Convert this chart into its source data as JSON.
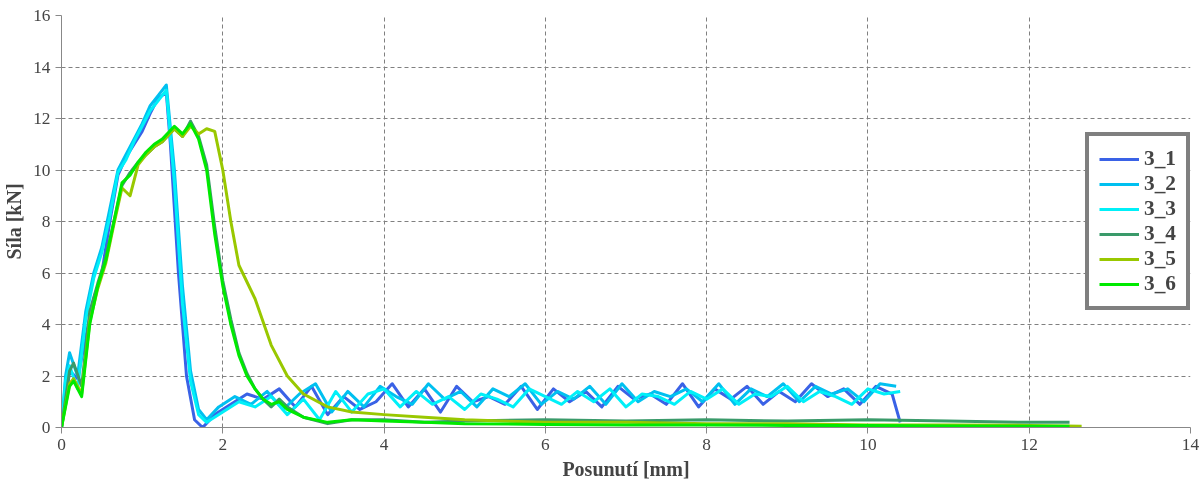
{
  "chart_data": {
    "type": "line",
    "xlabel": "Posunutí [mm]",
    "ylabel": "Síla [kN]",
    "xlim": [
      0,
      14
    ],
    "ylim": [
      0,
      16
    ],
    "xticks": [
      0,
      2,
      4,
      6,
      8,
      10,
      12,
      14
    ],
    "yticks": [
      0,
      2,
      4,
      6,
      8,
      10,
      12,
      14,
      16
    ],
    "grid": true,
    "legend": "right",
    "line_style": "solid",
    "marker": "none",
    "series": [
      {
        "name": "3_1",
        "color": "#3a62e6",
        "x": [
          0,
          0.05,
          0.1,
          0.2,
          0.3,
          0.4,
          0.5,
          0.6,
          0.7,
          0.8,
          0.9,
          1.0,
          1.1,
          1.2,
          1.3,
          1.35,
          1.45,
          1.55,
          1.65,
          1.75,
          1.9,
          2.1,
          2.3,
          2.5,
          2.7,
          2.9,
          3.1,
          3.3,
          3.5,
          3.7,
          3.9,
          4.1,
          4.3,
          4.5,
          4.7,
          4.9,
          5.1,
          5.3,
          5.5,
          5.7,
          5.9,
          6.1,
          6.3,
          6.5,
          6.7,
          6.9,
          7.1,
          7.3,
          7.5,
          7.7,
          7.9,
          8.1,
          8.3,
          8.5,
          8.7,
          8.9,
          9.1,
          9.3,
          9.5,
          9.7,
          9.9,
          10.1,
          10.3,
          10.4
        ],
        "values": [
          0,
          1.0,
          2.2,
          1.9,
          3.5,
          5.0,
          6.0,
          8,
          9.8,
          10.5,
          11,
          11.5,
          12.2,
          12.8,
          13,
          11,
          6,
          2,
          0.3,
          0,
          0.5,
          0.9,
          1.3,
          1.1,
          1.5,
          0.8,
          1.6,
          0.5,
          1.2,
          0.7,
          1.0,
          1.7,
          0.8,
          1.5,
          0.6,
          1.6,
          1.0,
          1.2,
          0.9,
          1.6,
          0.7,
          1.5,
          1.0,
          1.4,
          0.8,
          1.6,
          1.1,
          1.3,
          0.9,
          1.7,
          0.8,
          1.5,
          1.1,
          1.6,
          0.9,
          1.4,
          1.0,
          1.7,
          1.2,
          1.5,
          0.9,
          1.6,
          1.3,
          0.2
        ]
      },
      {
        "name": "3_2",
        "color": "#00c0f0",
        "x": [
          0,
          0.05,
          0.1,
          0.2,
          0.3,
          0.4,
          0.5,
          0.6,
          0.7,
          0.8,
          0.9,
          1.0,
          1.1,
          1.2,
          1.3,
          1.4,
          1.5,
          1.6,
          1.7,
          1.8,
          1.95,
          2.15,
          2.35,
          2.55,
          2.75,
          2.95,
          3.15,
          3.35,
          3.55,
          3.75,
          3.95,
          4.15,
          4.35,
          4.55,
          4.75,
          4.95,
          5.15,
          5.35,
          5.55,
          5.75,
          5.95,
          6.15,
          6.35,
          6.55,
          6.75,
          6.95,
          7.15,
          7.35,
          7.55,
          7.75,
          7.95,
          8.15,
          8.35,
          8.55,
          8.75,
          8.95,
          9.15,
          9.35,
          9.55,
          9.75,
          9.95,
          10.15,
          10.35
        ],
        "values": [
          0,
          2,
          2.9,
          2,
          4.5,
          6,
          7,
          8.5,
          10,
          10.6,
          11.2,
          11.8,
          12.5,
          12.9,
          13.3,
          10,
          5.5,
          2.2,
          0.7,
          0.3,
          0.8,
          1.2,
          0.9,
          1.4,
          0.7,
          1.3,
          1.7,
          0.6,
          1.4,
          0.8,
          1.6,
          1.2,
          0.9,
          1.7,
          1.1,
          1.4,
          0.8,
          1.5,
          1.2,
          1.7,
          0.9,
          1.4,
          1.1,
          1.6,
          0.9,
          1.7,
          1.0,
          1.4,
          1.2,
          1.5,
          1.0,
          1.7,
          0.9,
          1.5,
          1.2,
          1.7,
          1.0,
          1.6,
          1.3,
          1.5,
          1.0,
          1.7,
          1.6
        ]
      },
      {
        "name": "3_3",
        "color": "#00f0f8",
        "x": [
          0,
          0.05,
          0.1,
          0.2,
          0.3,
          0.4,
          0.5,
          0.6,
          0.7,
          0.8,
          0.9,
          1.0,
          1.1,
          1.2,
          1.3,
          1.4,
          1.5,
          1.6,
          1.7,
          1.8,
          2.0,
          2.2,
          2.4,
          2.6,
          2.8,
          3.0,
          3.2,
          3.4,
          3.6,
          3.8,
          4.0,
          4.2,
          4.4,
          4.6,
          4.8,
          5.0,
          5.2,
          5.4,
          5.6,
          5.8,
          6.0,
          6.2,
          6.4,
          6.6,
          6.8,
          7.0,
          7.2,
          7.4,
          7.6,
          7.8,
          8.0,
          8.2,
          8.4,
          8.6,
          8.8,
          9.0,
          9.2,
          9.4,
          9.6,
          9.8,
          10.0,
          10.2,
          10.4
        ],
        "values": [
          0,
          1.8,
          2.4,
          1.5,
          4.2,
          5.8,
          6.8,
          8.2,
          9.9,
          10.4,
          11.1,
          11.7,
          12.3,
          12.7,
          13.1,
          9.5,
          4.8,
          1.8,
          0.5,
          0.2,
          0.6,
          1.0,
          0.8,
          1.2,
          0.5,
          1.1,
          0.3,
          1.4,
          0.6,
          1.3,
          1.5,
          0.8,
          1.4,
          0.9,
          1.2,
          0.7,
          1.3,
          1.1,
          0.8,
          1.5,
          1.2,
          0.9,
          1.4,
          1.0,
          1.5,
          0.8,
          1.3,
          1.2,
          0.9,
          1.4,
          1.1,
          1.5,
          0.9,
          1.3,
          1.2,
          1.6,
          1.0,
          1.4,
          1.2,
          0.9,
          1.5,
          1.3,
          1.4
        ]
      },
      {
        "name": "3_4",
        "color": "#3a9a6a",
        "x": [
          0,
          0.1,
          0.15,
          0.25,
          0.35,
          0.45,
          0.55,
          0.65,
          0.75,
          0.85,
          0.95,
          1.05,
          1.15,
          1.25,
          1.4,
          1.5,
          1.6,
          1.7,
          1.8,
          1.9,
          2.0,
          2.1,
          2.2,
          2.3,
          2.4,
          2.5,
          2.6,
          2.7,
          2.8,
          3.0,
          3.3,
          3.6,
          4.0,
          4.5,
          5,
          6,
          7,
          8,
          9,
          10,
          11,
          12,
          12.5
        ],
        "values": [
          0,
          2.2,
          2.5,
          1.6,
          4.5,
          5.6,
          6.6,
          8,
          9.4,
          9.9,
          10.3,
          10.6,
          10.9,
          11.1,
          11.6,
          11.3,
          11.9,
          11.3,
          10.2,
          7.8,
          5.7,
          4.2,
          2.9,
          2.1,
          1.5,
          1.1,
          0.8,
          1.1,
          0.8,
          0.4,
          0.15,
          0.3,
          0.3,
          0.2,
          0.25,
          0.3,
          0.25,
          0.3,
          0.25,
          0.3,
          0.25,
          0.2,
          0.2
        ]
      },
      {
        "name": "3_5",
        "color": "#99c800",
        "x": [
          0,
          0.1,
          0.15,
          0.25,
          0.35,
          0.45,
          0.55,
          0.65,
          0.75,
          0.85,
          0.95,
          1.05,
          1.15,
          1.25,
          1.4,
          1.5,
          1.6,
          1.7,
          1.8,
          1.9,
          2.0,
          2.1,
          2.2,
          2.4,
          2.6,
          2.8,
          3.0,
          3.3,
          3.6,
          4.0,
          4.5,
          5,
          6,
          7,
          8,
          9,
          10,
          11,
          12,
          12.65
        ],
        "values": [
          0,
          1.7,
          1.9,
          1.3,
          4.1,
          5.4,
          6.4,
          7.9,
          9.3,
          9.0,
          10.2,
          10.6,
          10.9,
          11.1,
          11.6,
          11.3,
          11.7,
          11.4,
          11.6,
          11.5,
          10,
          8,
          6.3,
          5,
          3.2,
          2,
          1.3,
          0.8,
          0.6,
          0.5,
          0.4,
          0.3,
          0.2,
          0.2,
          0.15,
          0.15,
          0.1,
          0.1,
          0.08,
          0.05
        ]
      },
      {
        "name": "3_6",
        "color": "#00ea00",
        "x": [
          0,
          0.1,
          0.15,
          0.25,
          0.35,
          0.45,
          0.55,
          0.65,
          0.75,
          0.85,
          0.95,
          1.05,
          1.15,
          1.25,
          1.4,
          1.5,
          1.6,
          1.7,
          1.8,
          1.9,
          2.0,
          2.1,
          2.2,
          2.3,
          2.4,
          2.5,
          2.6,
          2.7,
          2.8,
          3.0,
          3.3,
          3.6,
          4.0,
          4.5,
          5,
          6,
          7,
          8,
          9,
          10,
          11,
          12,
          12.5
        ],
        "values": [
          0,
          1.6,
          1.8,
          1.2,
          4,
          5.5,
          6.5,
          8,
          9.5,
          9.8,
          10.3,
          10.7,
          11.0,
          11.2,
          11.7,
          11.4,
          11.8,
          11.2,
          10,
          7.5,
          5.5,
          4,
          2.8,
          2,
          1.5,
          1.1,
          0.9,
          1.0,
          0.7,
          0.4,
          0.2,
          0.3,
          0.25,
          0.2,
          0.15,
          0.12,
          0.1,
          0.1,
          0.08,
          0.08,
          0.06,
          0.05,
          0.05
        ]
      }
    ]
  }
}
